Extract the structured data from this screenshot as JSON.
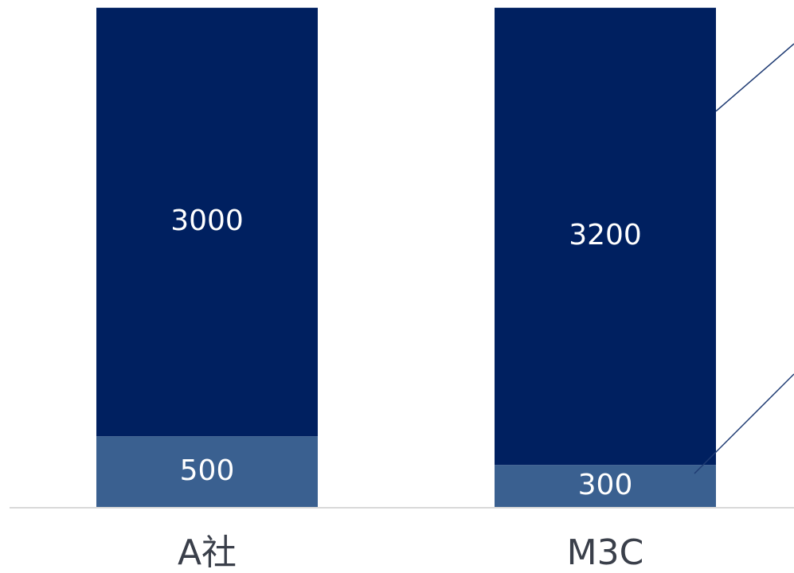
{
  "chart_data": {
    "type": "bar",
    "stacked": true,
    "categories": [
      "A社",
      "M3C"
    ],
    "series": [
      {
        "values": [
          500,
          300
        ],
        "color": "#3a6090"
      },
      {
        "values": [
          3000,
          3200
        ],
        "color": "#002060"
      }
    ],
    "title": "",
    "xlabel": "",
    "ylabel": "",
    "grid": false,
    "legend": "none"
  },
  "colors": {
    "background": "#ffffff",
    "axis": "#d9d9d9",
    "connector": "#1f3b73",
    "segment_text": "#ffffff",
    "category_text": "#3a3f4a"
  }
}
